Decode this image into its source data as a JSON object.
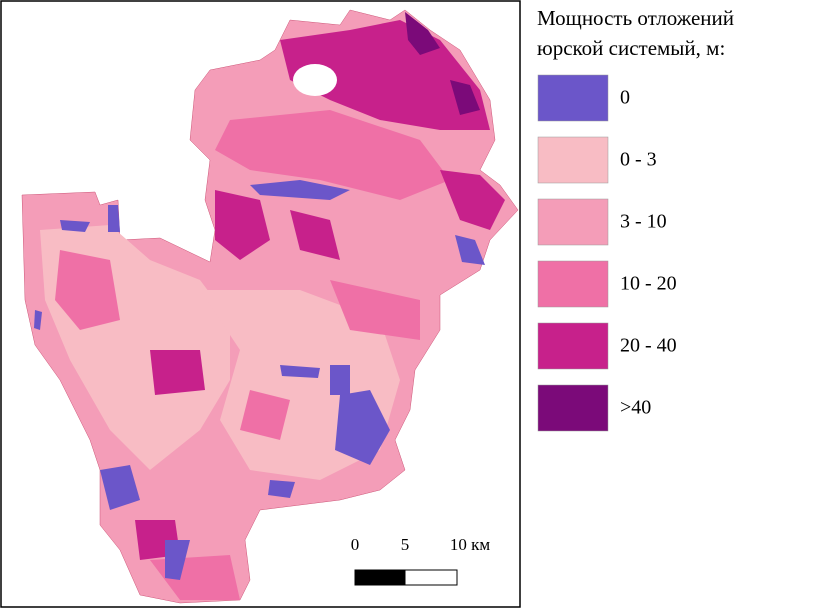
{
  "legend": {
    "title_lines": [
      "Мощность отложений",
      "юрской системый, м:"
    ],
    "items": [
      {
        "label": "0",
        "color": "#6b56c9"
      },
      {
        "label": "0 - 3",
        "color": "#f8bcc4"
      },
      {
        "label": "3 - 10",
        "color": "#f49db8"
      },
      {
        "label": "10 - 20",
        "color": "#ef70a6"
      },
      {
        "label": "20 - 40",
        "color": "#c7218b"
      },
      {
        "label": ">40",
        "color": "#7b0a79"
      }
    ]
  },
  "scale_bar": {
    "labels": [
      "0",
      "5",
      "10 км"
    ]
  }
}
